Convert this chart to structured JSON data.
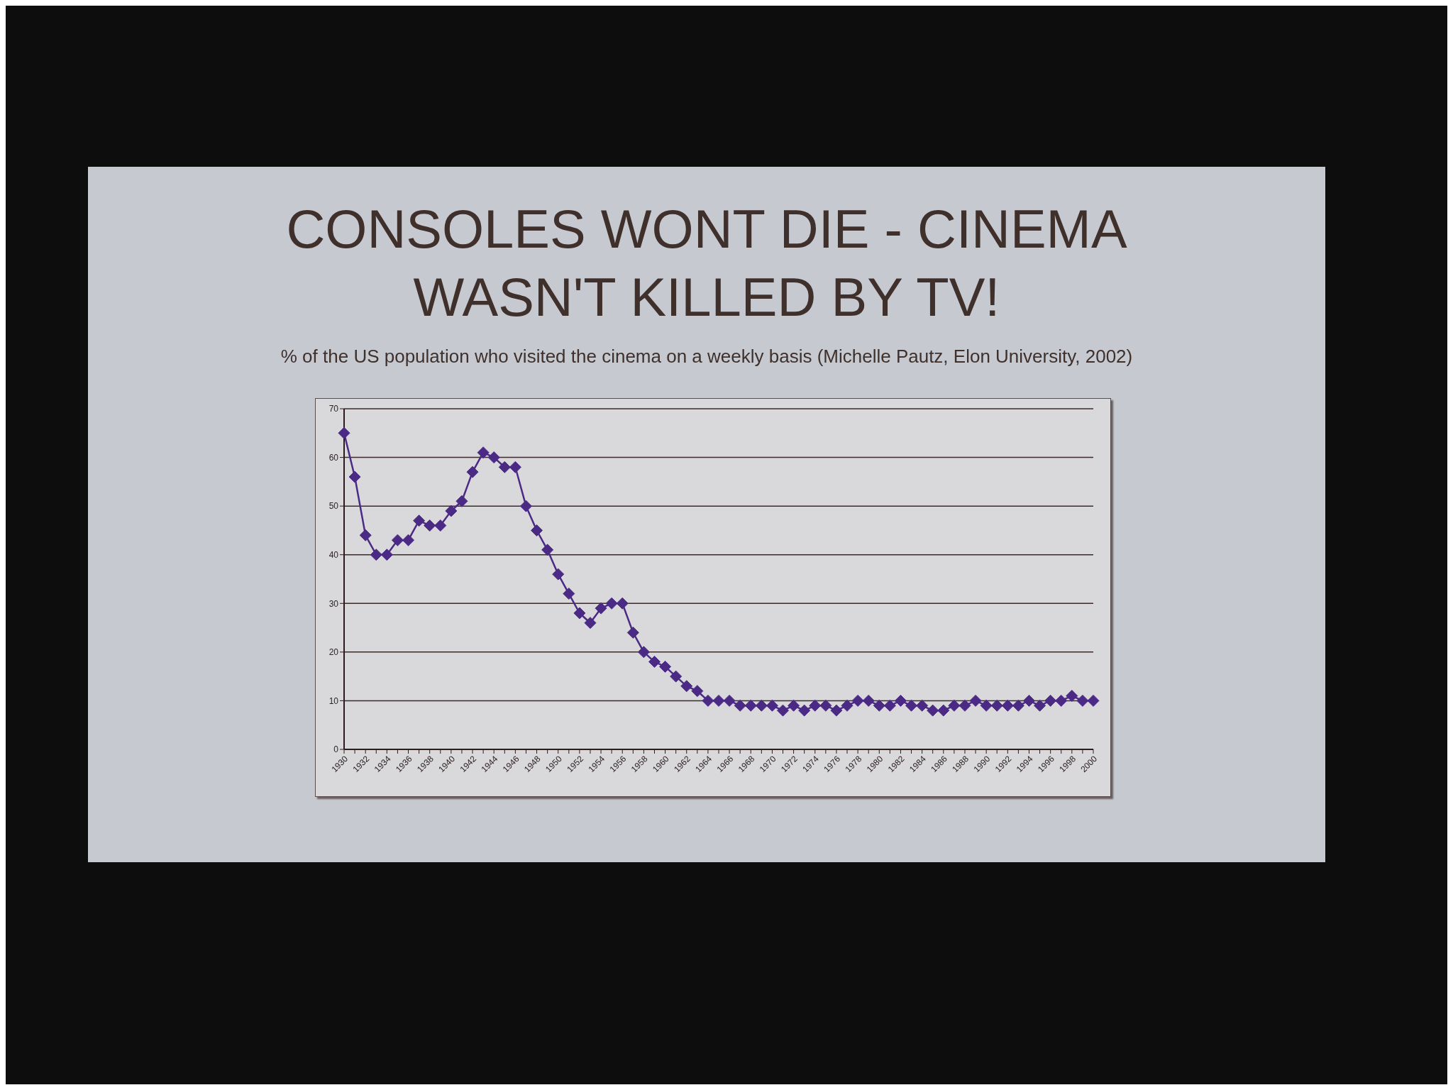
{
  "chart_data": {
    "type": "line",
    "title": "CONSOLES WONT DIE - CINEMA WASN'T KILLED BY TV!",
    "subtitle": "% of the US population who visited the cinema on a weekly basis (Michelle Pautz, Elon University, 2002)",
    "categories": [
      "1930",
      null,
      "1932",
      null,
      "1934",
      null,
      "1936",
      null,
      "1938",
      null,
      "1940",
      null,
      "1942",
      null,
      "1944",
      null,
      "1946",
      null,
      "1948",
      null,
      "1950",
      null,
      "1952",
      null,
      "1954",
      null,
      "1956",
      null,
      "1958",
      null,
      "1960",
      null,
      "1962",
      null,
      "1964",
      null,
      "1966",
      null,
      "1968",
      null,
      "1970",
      null,
      "1972",
      null,
      "1974",
      null,
      "1976",
      null,
      "1978",
      null,
      "1980",
      null,
      "1982",
      null,
      "1984",
      null,
      "1986",
      null,
      "1988",
      null,
      "1990",
      null,
      "1992",
      null,
      "1994",
      null,
      "1996",
      null,
      "1998",
      null,
      "2000"
    ],
    "series": [
      {
        "color": "#4b2a85",
        "values": [
          65,
          56,
          44,
          40,
          40,
          43,
          43,
          47,
          46,
          46,
          49,
          51,
          57,
          61,
          60,
          58,
          58,
          50,
          45,
          41,
          36,
          32,
          28,
          26,
          29,
          30,
          30,
          24,
          20,
          18,
          17,
          15,
          13,
          12,
          10,
          10,
          10,
          9,
          9,
          9,
          9,
          8,
          9,
          8,
          9,
          9,
          8,
          9,
          10,
          10,
          9,
          9,
          10,
          9,
          9,
          8,
          8,
          9,
          9,
          10,
          9,
          9,
          9,
          9,
          10,
          9,
          10,
          10,
          11,
          10,
          10
        ]
      }
    ],
    "ylim": [
      0,
      70
    ],
    "yticks": [
      0,
      10,
      20,
      30,
      40,
      50,
      60,
      70
    ],
    "grid": "y",
    "marker": "diamond"
  }
}
